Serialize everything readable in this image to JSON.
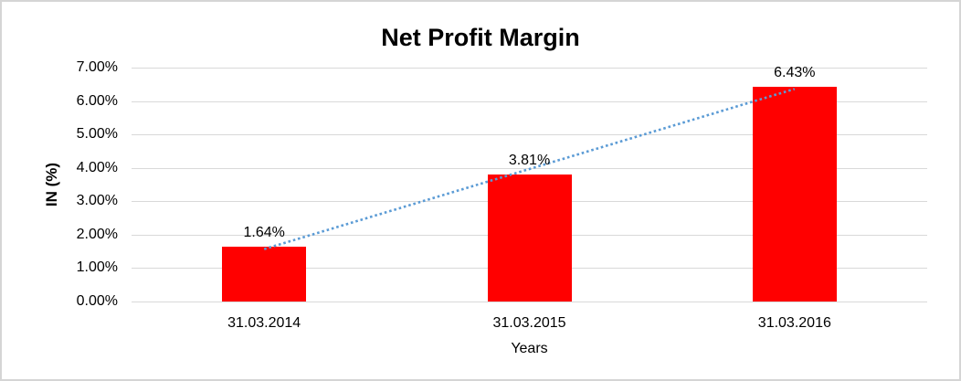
{
  "chart_data": {
    "type": "bar",
    "title": "Net Profit Margin",
    "xlabel": "Years",
    "ylabel": "IN (%)",
    "categories": [
      "31.03.2014",
      "31.03.2015",
      "31.03.2016"
    ],
    "values": [
      1.64,
      3.81,
      6.43
    ],
    "value_labels": [
      "1.64%",
      "3.81%",
      "6.43%"
    ],
    "ylim": [
      0,
      7
    ],
    "yticks": [
      0,
      1,
      2,
      3,
      4,
      5,
      6,
      7
    ],
    "ytick_labels": [
      "0.00%",
      "1.00%",
      "2.00%",
      "3.00%",
      "4.00%",
      "5.00%",
      "6.00%",
      "7.00%"
    ],
    "grid": true,
    "legend": false,
    "trendline": {
      "type": "linear",
      "style": "dotted",
      "start_value": 1.57,
      "end_value": 6.36
    },
    "colors": {
      "bar": "#FF0000",
      "trendline": "#5B9BD5",
      "gridline": "#D9D9D9",
      "text": "#000000",
      "chart_border": "#D5D5D5",
      "background": "#FFFFFF"
    }
  }
}
